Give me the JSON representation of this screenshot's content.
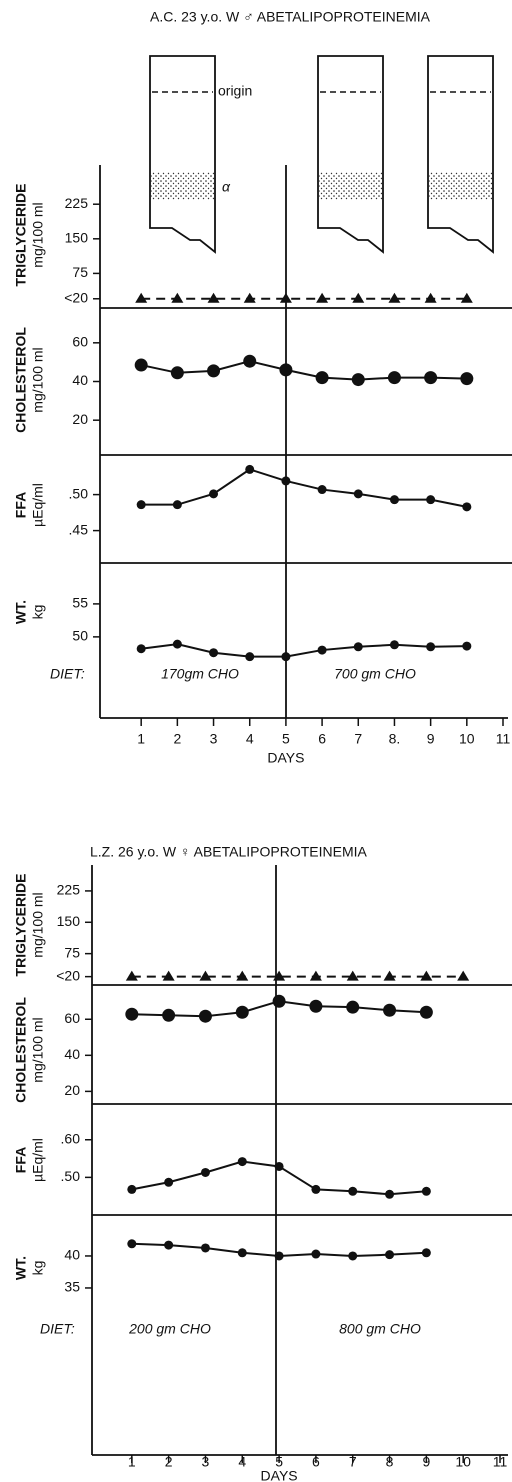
{
  "chart_data": [
    {
      "type": "line",
      "title": "A.C. 23 y.o. W ♂ ABETALIPOPROTEINEMIA",
      "xlabel": "DAYS",
      "color": "#111111",
      "xlim": [
        0,
        11
      ],
      "xticks": [
        1,
        2,
        3,
        4,
        5,
        6,
        7,
        {
          "value": 8,
          "label": "8."
        },
        9,
        10,
        11
      ],
      "diet_label": "DIET:",
      "diets": [
        "170gm CHO",
        "700 gm CHO"
      ],
      "annotations": [
        "origin",
        "α"
      ],
      "panels": [
        {
          "ylabel": [
            "TRIGLYCERIDE",
            "mg/100 ml"
          ],
          "ylim": [
            0,
            310
          ],
          "yticks": [
            {
              "value": 20,
              "label": "<20"
            },
            75,
            150,
            225
          ],
          "marker": "triangle",
          "dashed": true,
          "x": [
            1,
            2,
            3,
            4,
            5,
            6,
            7,
            8,
            9,
            10
          ],
          "values": [
            20,
            20,
            20,
            20,
            20,
            20,
            20,
            20,
            20,
            20
          ]
        },
        {
          "ylabel": [
            "CHOLESTEROL",
            "mg/100 ml"
          ],
          "ylim": [
            2,
            78
          ],
          "yticks": [
            20,
            40,
            60
          ],
          "marker": "circle-large",
          "dashed": false,
          "x": [
            1,
            2,
            3,
            4,
            5,
            6,
            7,
            8,
            9,
            10
          ],
          "values": [
            48.5,
            44.5,
            45.5,
            50.5,
            46,
            42,
            41,
            42,
            42,
            41.5
          ]
        },
        {
          "ylabel": [
            "FFA",
            "µEq/ml"
          ],
          "ylim": [
            0.405,
            0.555
          ],
          "yticks": [
            {
              "value": 0.45,
              "label": ".45"
            },
            {
              "value": 0.5,
              "label": ".50"
            }
          ],
          "marker": "circle",
          "dashed": false,
          "x": [
            1,
            2,
            3,
            4,
            5,
            6,
            7,
            8,
            9,
            10
          ],
          "values": [
            0.486,
            0.486,
            0.501,
            0.535,
            0.519,
            0.507,
            0.501,
            0.493,
            0.493,
            0.483
          ]
        },
        {
          "ylabel": [
            "WT.",
            "kg"
          ],
          "ylim": [
            37.7,
            61.2
          ],
          "yticks": [
            50,
            55
          ],
          "marker": "circle",
          "dashed": false,
          "x": [
            1,
            2,
            3,
            4,
            5,
            6,
            7,
            8,
            9,
            10
          ],
          "values": [
            48.2,
            48.9,
            47.6,
            47,
            47,
            48,
            48.5,
            48.8,
            48.5,
            48.6
          ]
        }
      ]
    },
    {
      "type": "line",
      "title": "L.Z. 26 y.o. W ♀ ABETALIPOPROTEINEMIA",
      "xlabel": "DAYS",
      "color": "#111111",
      "xlim": [
        0,
        11
      ],
      "xticks": [
        1,
        2,
        3,
        4,
        5,
        6,
        7,
        8,
        9,
        10,
        11
      ],
      "diet_label": "DIET:",
      "diets": [
        "200 gm CHO",
        "800 gm CHO"
      ],
      "panels": [
        {
          "ylabel": [
            "TRIGLYCERIDE",
            "mg/100 ml"
          ],
          "ylim": [
            0,
            287
          ],
          "yticks": [
            {
              "value": 20,
              "label": "<20"
            },
            75,
            150,
            225
          ],
          "marker": "triangle",
          "dashed": true,
          "x": [
            1,
            2,
            3,
            4,
            5,
            6,
            7,
            8,
            9,
            10
          ],
          "values": [
            20,
            20,
            20,
            20,
            20,
            20,
            20,
            20,
            20,
            20
          ]
        },
        {
          "ylabel": [
            "CHOLESTEROL",
            "mg/100 ml"
          ],
          "ylim": [
            13,
            79
          ],
          "yticks": [
            20,
            40,
            60
          ],
          "marker": "circle-large",
          "dashed": false,
          "x": [
            1,
            2,
            3,
            4,
            5,
            6,
            7,
            8,
            9
          ],
          "values": [
            62.8,
            62.2,
            61.7,
            63.9,
            70,
            67.2,
            66.7,
            65,
            63.9
          ]
        },
        {
          "ylabel": [
            "FFA",
            "µEq/ml"
          ],
          "ylim": [
            0.4,
            0.695
          ],
          "yticks": [
            {
              "value": 0.5,
              "label": ".50"
            },
            {
              "value": 0.6,
              "label": ".60"
            }
          ],
          "marker": "circle",
          "dashed": false,
          "x": [
            1,
            2,
            3,
            4,
            5,
            6,
            7,
            8,
            9
          ],
          "values": [
            0.468,
            0.487,
            0.513,
            0.542,
            0.529,
            0.468,
            0.463,
            0.455,
            0.463
          ]
        },
        {
          "ylabel": [
            "WT.",
            "kg"
          ],
          "ylim": [
            8.9,
            46.4
          ],
          "yticks": [
            35,
            40
          ],
          "marker": "circle",
          "dashed": false,
          "x": [
            1,
            2,
            3,
            4,
            5,
            6,
            7,
            8,
            9
          ],
          "values": [
            41.9,
            41.7,
            41.25,
            40.5,
            40,
            40.3,
            40,
            40.2,
            40.5
          ]
        }
      ]
    }
  ]
}
